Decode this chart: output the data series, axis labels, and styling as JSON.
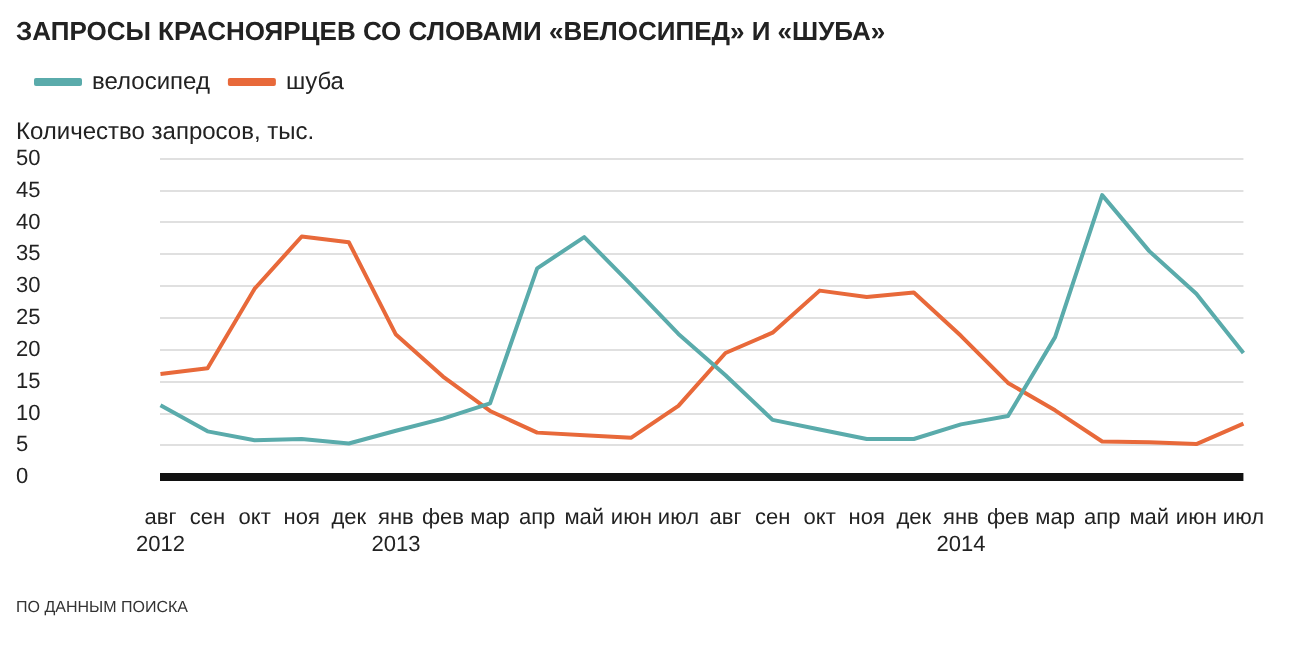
{
  "chart_data": {
    "type": "line",
    "title": "ЗАПРОСЫ КРАСНОЯРЦЕВ СО СЛОВАМИ «ВЕЛОСИПЕД» И «ШУБА»",
    "ylabel": "Количество запросов, тыс.",
    "annotations": [
      "ПО ДАННЫМ ПОИСКА"
    ],
    "categories": [
      "авг\n2012",
      "сен",
      "окт",
      "ноя",
      "дек",
      "янв\n2013",
      "фев",
      "мар",
      "апр",
      "май",
      "июн",
      "июл",
      "авг",
      "сен",
      "окт",
      "ноя",
      "дек",
      "янв\n2014",
      "фев",
      "мар",
      "апр",
      "май",
      "июн",
      "июл"
    ],
    "series": [
      {
        "name": "велосипед",
        "color": "#5aabab",
        "values": [
          11.3,
          7.2,
          5.8,
          6.0,
          5.3,
          7.3,
          9.2,
          11.6,
          32.8,
          37.7,
          30.2,
          22.5,
          16,
          9,
          7.5,
          6,
          6,
          8.3,
          9.6,
          22,
          44.3,
          35.5,
          28.8,
          19.5
        ]
      },
      {
        "name": "шуба",
        "color": "#e8693a",
        "values": [
          16.2,
          17.1,
          29.6,
          37.8,
          36.9,
          22.4,
          15.8,
          10.4,
          7.0,
          6.6,
          6.2,
          11.2,
          19.5,
          22.7,
          29.3,
          28.3,
          29.0,
          22.2,
          14.8,
          10.5,
          5.6,
          5.5,
          5.2,
          8.4
        ]
      }
    ],
    "ylim": [
      0,
      50
    ],
    "yticks": [
      0,
      5,
      10,
      15,
      20,
      25,
      30,
      35,
      40,
      45,
      50
    ],
    "grid": "y",
    "legend": "top left",
    "marker": "none",
    "line_style": "solid"
  }
}
